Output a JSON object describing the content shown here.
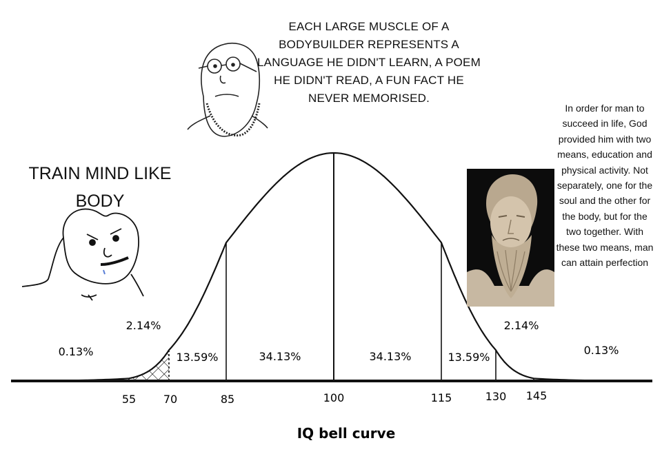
{
  "chart_data": {
    "type": "area",
    "title": "IQ bell curve",
    "distribution": "normal",
    "mean": 100,
    "sd": 15,
    "x_ticks": [
      "55",
      "70",
      "85",
      "100",
      "115",
      "130",
      "145"
    ],
    "segments": [
      {
        "label": "0.13%",
        "from": 40,
        "to": 55,
        "value": 0.13
      },
      {
        "label": "2.14%",
        "from": 55,
        "to": 70,
        "value": 2.14
      },
      {
        "label": "13.59%",
        "from": 70,
        "to": 85,
        "value": 13.59
      },
      {
        "label": "34.13%",
        "from": 85,
        "to": 100,
        "value": 34.13
      },
      {
        "label": "34.13%",
        "from": 100,
        "to": 115,
        "value": 34.13
      },
      {
        "label": "13.59%",
        "from": 115,
        "to": 130,
        "value": 13.59
      },
      {
        "label": "2.14%",
        "from": 130,
        "to": 145,
        "value": 2.14
      },
      {
        "label": "0.13%",
        "from": 145,
        "to": 160,
        "value": 0.13
      }
    ],
    "hatched_range": [
      40,
      70
    ],
    "grid": false
  },
  "captions": {
    "top": "EACH LARGE MUSCLE OF A BODYBUILDER REPRESENTS A LANGUAGE HE DIDN'T LEARN, A POEM HE DIDN'T READ, A FUN FACT HE NEVER MEMORISED.",
    "left": "TRAIN MIND LIKE BODY",
    "quote": "In order for man to succeed in life, God provided him with two means, education and physical activity. Not separately, one for the soul and the other for the body, but for the two together. With these two means, man can attain perfection"
  },
  "icons": {
    "left_character": "angry-wojak-icon",
    "top_character": "soyjak-glasses-icon",
    "statue": "plato-bust-icon"
  }
}
